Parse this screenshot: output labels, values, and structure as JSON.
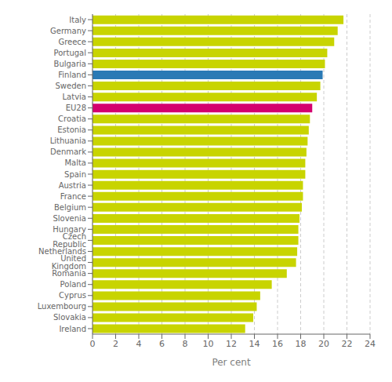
{
  "chart_data": {
    "type": "bar",
    "orientation": "horizontal",
    "categories": [
      "Italy",
      "Germany",
      "Greece",
      "Portugal",
      "Bulgaria",
      "Finland",
      "Sweden",
      "Latvia",
      "EU28",
      "Croatia",
      "Estonia",
      "Lithuania",
      "Denmark",
      "Malta",
      "Spain",
      "Austria",
      "France",
      "Belgium",
      "Slovenia",
      "Hungary",
      "Czech Republic",
      "Netherlands",
      "United Kingdom",
      "Romania",
      "Poland",
      "Cyprus",
      "Luxembourg",
      "Slovakia",
      "Ireland"
    ],
    "values": [
      21.7,
      21.2,
      20.9,
      20.3,
      20.1,
      19.9,
      19.7,
      19.4,
      19.0,
      18.8,
      18.7,
      18.6,
      18.5,
      18.4,
      18.4,
      18.2,
      18.2,
      18.1,
      17.9,
      17.8,
      17.8,
      17.7,
      17.6,
      16.8,
      15.5,
      14.5,
      14.2,
      13.9,
      13.2
    ],
    "colors": [
      "#c8d400",
      "#c8d400",
      "#c8d400",
      "#c8d400",
      "#c8d400",
      "#2a7ab5",
      "#c8d400",
      "#c8d400",
      "#d4006e",
      "#c8d400",
      "#c8d400",
      "#c8d400",
      "#c8d400",
      "#c8d400",
      "#c8d400",
      "#c8d400",
      "#c8d400",
      "#c8d400",
      "#c8d400",
      "#c8d400",
      "#c8d400",
      "#c8d400",
      "#c8d400",
      "#c8d400",
      "#c8d400",
      "#c8d400",
      "#c8d400",
      "#c8d400",
      "#c8d400"
    ],
    "xlabel": "Per cent",
    "xlim": [
      0,
      24
    ],
    "xticks": [
      0,
      2,
      4,
      6,
      8,
      10,
      12,
      14,
      16,
      18,
      20,
      22,
      24
    ],
    "grid": true
  }
}
